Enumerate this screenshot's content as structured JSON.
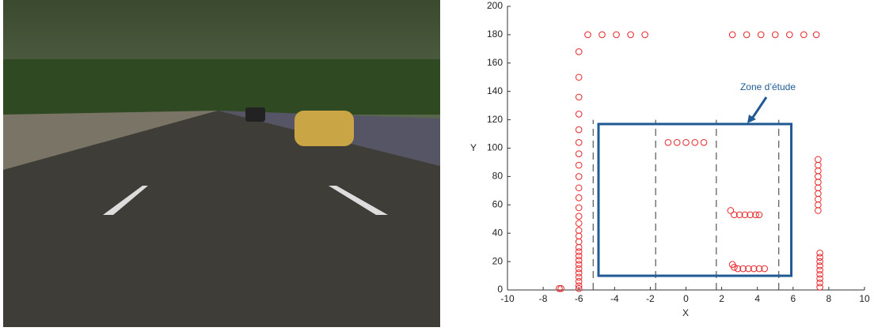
{
  "chart_data": {
    "type": "scatter",
    "xlabel": "X",
    "ylabel": "Y",
    "color": "#e8262b",
    "x": [
      -6,
      -6,
      -6,
      -6,
      -6,
      -6,
      -6,
      -6,
      -6,
      -6,
      -6,
      -6,
      -6,
      -6,
      -6,
      -6,
      -6,
      -6,
      -6,
      -6,
      -6,
      -6,
      -6,
      -6,
      -6,
      -6,
      -6,
      -6,
      -7.1,
      -7,
      -5.5,
      -4.7,
      -3.9,
      -3.1,
      -2.3,
      2.6,
      3.4,
      4.2,
      5,
      5.8,
      6.6,
      7.3,
      -1,
      -0.5,
      0,
      0.5,
      1,
      2.5,
      2.7,
      3,
      3.3,
      3.6,
      3.9,
      4.1,
      2.6,
      2.7,
      2.9,
      3.2,
      3.5,
      3.8,
      4.1,
      4.4,
      7.4,
      7.4,
      7.4,
      7.4,
      7.4,
      7.4,
      7.4,
      7.4,
      7.4,
      7.4,
      7.5,
      7.5,
      7.5,
      7.5,
      7.5,
      7.5,
      7.5,
      7.5,
      7.5
    ],
    "y": [
      168,
      150,
      136,
      124,
      113,
      104,
      96,
      88,
      80,
      72,
      65,
      58,
      52,
      47,
      42,
      38,
      34,
      30,
      27,
      24,
      21,
      18,
      15,
      12,
      9,
      6,
      3,
      1,
      1,
      1,
      180,
      180,
      180,
      180,
      180,
      180,
      180,
      180,
      180,
      180,
      180,
      180,
      104,
      104,
      104,
      104,
      104,
      56,
      53,
      53,
      53,
      53,
      53,
      53,
      18,
      16,
      15,
      15,
      15,
      15,
      15,
      15,
      92,
      88,
      84,
      80,
      76,
      72,
      68,
      64,
      60,
      56,
      26,
      23,
      20,
      17,
      14,
      11,
      8,
      5,
      2
    ],
    "xlim": [
      -10,
      10
    ],
    "ylim": [
      0,
      200
    ],
    "xticks": [
      -10,
      -8,
      -6,
      -4,
      -2,
      0,
      2,
      4,
      6,
      8,
      10
    ],
    "yticks": [
      0,
      20,
      40,
      60,
      80,
      100,
      120,
      140,
      160,
      180,
      200
    ],
    "zone": {
      "label": "Zone d’étude",
      "xlim": [
        -4.9,
        5.9
      ],
      "ylim": [
        10,
        117
      ]
    },
    "lanes_x": [
      -5.2,
      -1.7,
      1.7,
      5.2
    ],
    "lanes_top": 120
  }
}
